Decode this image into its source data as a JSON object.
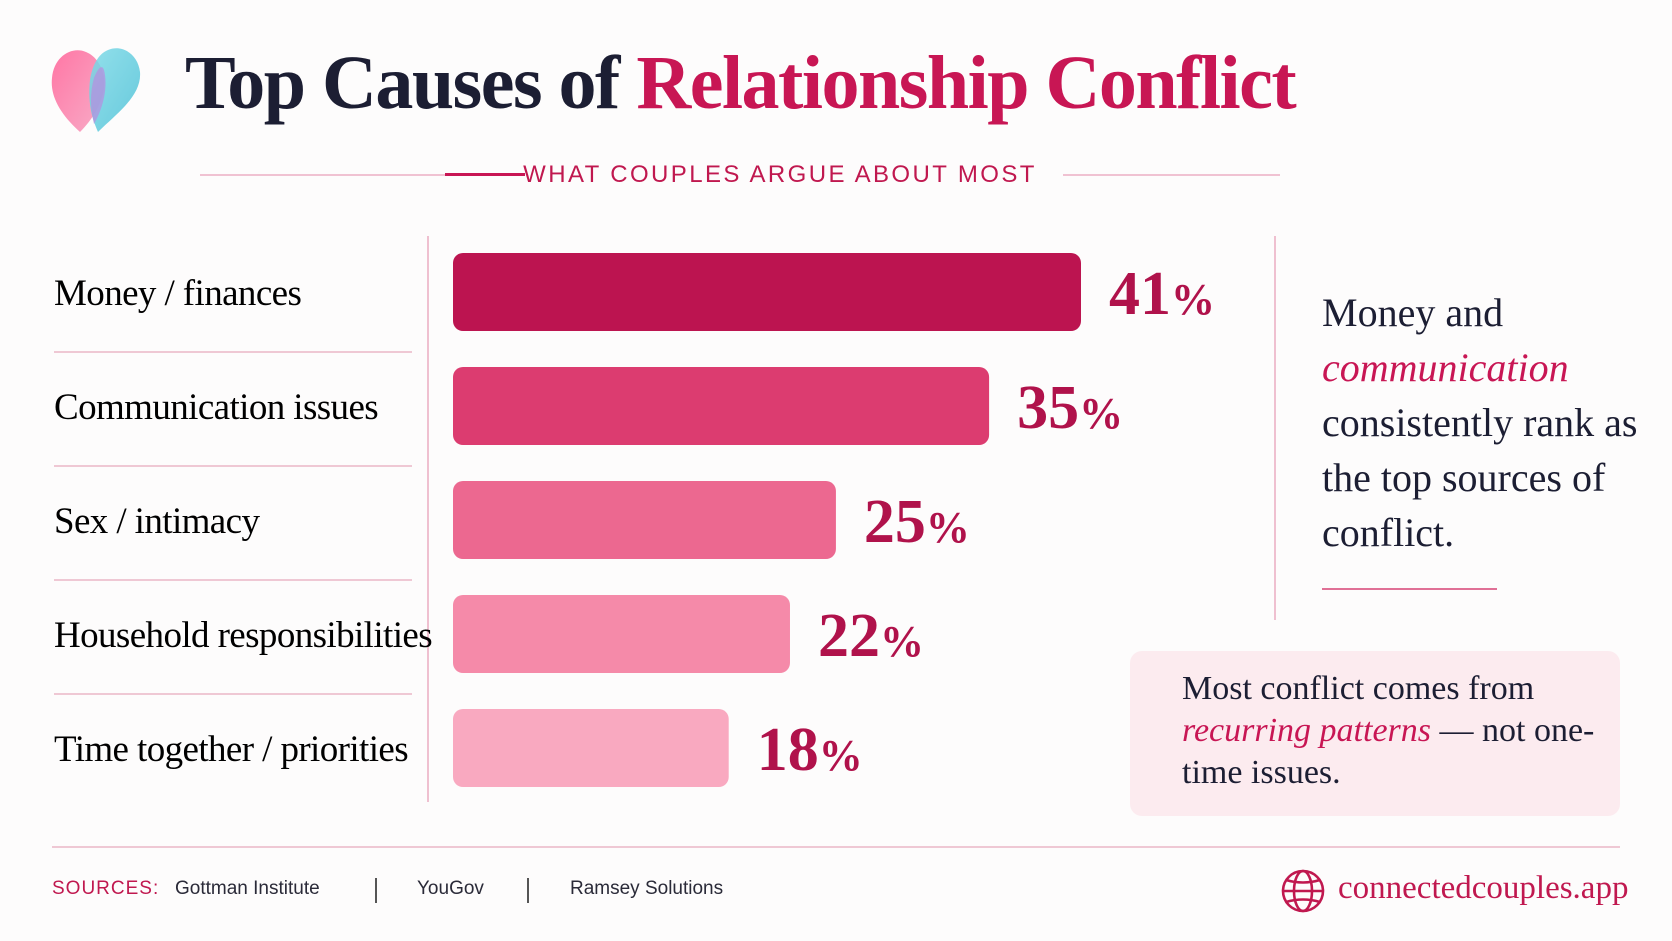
{
  "header": {
    "title_part1": "Top Causes of ",
    "title_highlight": "Relationship Conflict",
    "subtitle": "WHAT COUPLES ARGUE ABOUT MOST"
  },
  "chart_data": {
    "type": "bar",
    "orientation": "horizontal",
    "categories": [
      "Money / finances",
      "Communication issues",
      "Sex / intimacy",
      "Household responsibilities",
      "Time together / priorities"
    ],
    "values": [
      41,
      35,
      25,
      22,
      18
    ],
    "value_suffix": "%",
    "xlim": [
      0,
      50
    ],
    "title": "",
    "xlabel": "",
    "ylabel": "",
    "bar_colors": [
      "#bc1450",
      "#dc3c70",
      "#ec6890",
      "#f58aa9",
      "#f9a9c0"
    ]
  },
  "insight": {
    "part1": "Money and ",
    "highlight": "communication",
    "part2": " consistently rank as the top sources of conflict."
  },
  "note": {
    "part1": "Most conflict comes from ",
    "highlight": "recurring patterns",
    "part2": " — not one-time issues."
  },
  "footer": {
    "sources_label": "SOURCES:",
    "sources": [
      "Gottman Institute",
      "YouGov",
      "Ramsey Solutions"
    ],
    "website": "connectedcouples.app"
  },
  "colors": {
    "accent": "#c81654",
    "text": "#1c1e33",
    "note_bg": "#fcebef",
    "divider": "#f0c2d2"
  },
  "icons": {
    "logo": "overlapping-hearts-icon",
    "website": "globe-icon"
  }
}
